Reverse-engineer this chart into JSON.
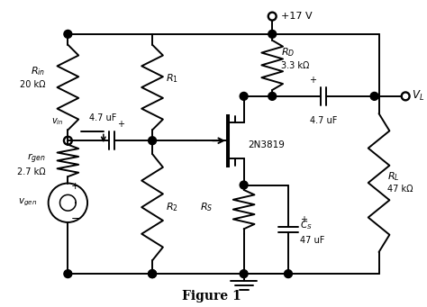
{
  "title": "Figure 1",
  "vdd": "+17 V",
  "background": "#ffffff",
  "line_color": "#000000",
  "lw": 1.4,
  "labels": {
    "Rin": "R",
    "Rin_sub": "in",
    "Rin_val": "20 kΩ",
    "R1": "R",
    "R1_sub": "1",
    "R2": "R",
    "R2_sub": "2",
    "RD": "R",
    "RD_sub": "D",
    "RD_val": "3.3 kΩ",
    "RS": "R",
    "RS_sub": "S",
    "RL": "R",
    "RL_sub": "L",
    "RL_val": "47 kΩ",
    "rgen": "r",
    "rgen_sub": "gen",
    "rgen_val": "2.7 kΩ",
    "C1": "4.7 uF",
    "C2": "4.7 uF",
    "CS_label": "C",
    "CS_sub": "S",
    "CS_val": "47 uF",
    "JFET": "2N3819",
    "VL": "V",
    "VL_sub": "L",
    "vin": "v",
    "vin_sub": "in",
    "vgen": "v",
    "vgen_sub": "gen"
  }
}
